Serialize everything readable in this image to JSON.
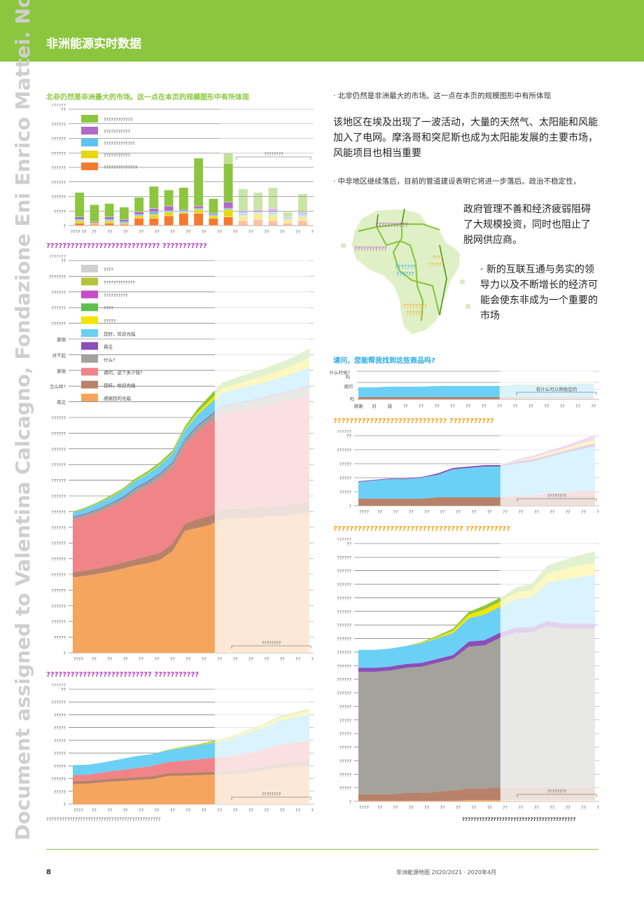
{
  "header": {
    "title": "非洲能源实时数据"
  },
  "watermark": {
    "text": "Document assigned to Valentina Calcagno, Fondazione Eni Enrico Mattei. Not fo"
  },
  "colors": {
    "green": "#8cc63f",
    "purple": "#a55fc4",
    "cyan": "#5bc5f2",
    "yellow": "#f2e500",
    "orange": "#f4a460",
    "pink": "#f08080",
    "brown": "#b8826a",
    "gray": "#a3a39b",
    "olive": "#b5c33a",
    "magenta": "#c84bc8",
    "lightgray": "#d0d0d0"
  },
  "charts": {
    "bar": {
      "title": "北非仍然是非洲最大的市场。这一点在本页的规模图形中有所体现",
      "y_ticks": [
        "??????\n??",
        "??????",
        "??????",
        "??????",
        "??????",
        "??????",
        "??????",
        "?????",
        "?"
      ],
      "legend": [
        {
          "label": "????????????",
          "color": "#8cc63f"
        },
        {
          "label": "???????????",
          "color": "#b06ac8"
        },
        {
          "label": "?????????????",
          "color": "#5bc5f2"
        },
        {
          "label": "???????????",
          "color": "#e8d80f"
        },
        {
          "label": "??????????????",
          "color": "#f47a30"
        }
      ],
      "forecast_label": "????????",
      "x_ticks": [
        "???? ??",
        "??",
        "??",
        "??",
        "??",
        "??",
        "??",
        "??",
        "??",
        "??",
        "??",
        "??",
        "??",
        "??",
        "??",
        "??"
      ]
    },
    "area_main": {
      "title": "???????????????????????????? ???????????",
      "y_ticks": [
        "???????\n??",
        "???????",
        "??????",
        "??????",
        "??????",
        "谢谢",
        "对不起",
        "谢谢",
        "怎么样?",
        "再见",
        "??????",
        "??????",
        "??????",
        "??????",
        "??????",
        "??????",
        "??????",
        "??????",
        "??????",
        "??????",
        "??????",
        "??????",
        "??????",
        "??????",
        "?????",
        "?"
      ],
      "legend": [
        {
          "label": "????",
          "color": "#d0d0d0"
        },
        {
          "label": "?????????????",
          "color": "#b5c33a"
        },
        {
          "label": "??????????",
          "color": "#c84bc8"
        },
        {
          "label": "????",
          "color": "#5fbf4f"
        },
        {
          "label": "?????",
          "color": "#f2e500"
        },
        {
          "label": "您好，欢迎光临",
          "color": "#6ccff5"
        },
        {
          "label": "再见",
          "color": "#8a4fb8"
        },
        {
          "label": "什么?",
          "color": "#a3a39b"
        },
        {
          "label": "请问，这个多少钱?",
          "color": "#f08488"
        },
        {
          "label": "您好，欢迎光临",
          "color": "#b8826a"
        },
        {
          "label": "感谢您的光临",
          "color": "#f6a55e"
        }
      ],
      "forecast_label": "????????",
      "x_ticks": [
        "????",
        "??",
        "??",
        "??",
        "??",
        "??",
        "??",
        "??",
        "??",
        "??",
        "??",
        "??",
        "??",
        "??",
        "??",
        "??"
      ]
    },
    "area_bl": {
      "title": "?????????????????????????? ???????????",
      "y_ticks": [
        "??????\n??",
        "??????",
        "?????",
        "?????",
        "?????",
        "?????",
        "?????",
        "??????",
        "?????",
        "?"
      ],
      "forecast_label": "????????",
      "x_ticks": [
        "????",
        "??",
        "??",
        "??",
        "??",
        "??",
        "??",
        "??",
        "??",
        "??",
        "??",
        "??",
        "??",
        "??",
        "??",
        "??"
      ],
      "footnote": "????????????????????????????????????????????"
    },
    "small": {
      "title": "请问，您能帮我找到这些商品吗?",
      "y_ticks": [
        "什么时候?\n吗",
        "请问",
        "吗"
      ],
      "forecast_label": "有什么可以帮助您的",
      "x_ticks": [
        "谢谢",
        "对",
        "错",
        "??",
        "??",
        "??",
        "??",
        "??",
        "??",
        "??",
        "??",
        "??",
        "??",
        "??",
        "??",
        "??"
      ]
    },
    "area_mr": {
      "title": "???????????????????????????? ???????????",
      "y_ticks": [
        "??????\n??",
        "??????",
        "?????",
        "?????",
        "?????",
        "?"
      ],
      "forecast_label": "????????",
      "x_ticks": [
        "????",
        "??",
        "??",
        "??",
        "??",
        "??",
        "??",
        "??",
        "??",
        "??",
        "??",
        "??",
        "??",
        "??",
        "??",
        "??"
      ]
    },
    "area_br": {
      "title": "???????????????????????????????? ???????????",
      "y_ticks": [
        "??????\n??",
        "??????",
        "??????",
        "??????",
        "??????",
        "??????",
        "??????",
        "??????",
        "??????",
        "??????",
        "??????",
        "??????",
        "?????",
        "?????",
        "?????",
        "?????",
        "?????",
        "?????",
        "?????",
        "?"
      ],
      "forecast_label": "????????",
      "x_ticks": [
        "????",
        "??",
        "??",
        "??",
        "??",
        "??",
        "??",
        "??",
        "??",
        "??",
        "??",
        "??",
        "??",
        "??",
        "??",
        "??"
      ],
      "footnote": "????????????????????????????????????????"
    }
  },
  "chart_data": [
    {
      "type": "bar",
      "title": "北非仍然是非洲最大的市场。这一点在本页的规模图形中有所体现",
      "categories": [
        "1",
        "2",
        "3",
        "4",
        "5",
        "6",
        "7",
        "8",
        "9",
        "10",
        "11",
        "12",
        "13",
        "14",
        "15",
        "16"
      ],
      "series": [
        {
          "name": "??????????????",
          "values": [
            2,
            1,
            2,
            1,
            6,
            6,
            8,
            10,
            10,
            6,
            7,
            4,
            5,
            4,
            2,
            4
          ]
        },
        {
          "name": "???????????",
          "values": [
            2,
            1,
            2,
            2,
            2,
            3,
            4,
            1,
            2,
            1,
            5,
            2,
            2,
            3,
            1,
            2
          ]
        },
        {
          "name": "?????????????",
          "values": [
            1,
            0,
            1,
            1,
            1,
            2,
            1,
            1,
            1,
            1,
            1,
            2,
            1,
            2,
            1,
            2
          ]
        },
        {
          "name": "???????????",
          "values": [
            2,
            1,
            2,
            1,
            2,
            3,
            3,
            1,
            3,
            2,
            6,
            4,
            5,
            5,
            3,
            3
          ]
        },
        {
          "name": "????????????",
          "values": [
            20,
            14,
            11,
            10,
            12,
            18,
            13,
            18,
            39,
            12,
            40,
            18,
            14,
            17,
            4,
            15
          ]
        }
      ],
      "ylim": [
        0,
        95
      ]
    },
    {
      "type": "area",
      "title": "???????????????????????????? ???????????",
      "x": [
        0,
        1,
        2,
        3,
        4,
        5,
        6,
        7,
        8,
        9,
        10,
        11,
        12,
        13,
        14,
        15,
        16,
        17,
        18,
        19
      ],
      "series": [
        {
          "name": "感谢您的光临",
          "values": [
            260,
            265,
            272,
            280,
            290,
            300,
            308,
            320,
            350,
            420,
            430,
            440,
            460,
            462,
            464,
            466,
            470,
            472,
            478,
            484
          ]
        },
        {
          "name": "您好，欢迎光临",
          "values": [
            18,
            18,
            19,
            20,
            20,
            22,
            24,
            24,
            26,
            24,
            30,
            32,
            33,
            34,
            35,
            35,
            36,
            36,
            36,
            37
          ]
        },
        {
          "name": "请问，这个多少钱?",
          "values": [
            180,
            185,
            192,
            200,
            210,
            228,
            240,
            255,
            260,
            270,
            300,
            320,
            330,
            335,
            340,
            345,
            350,
            358,
            362,
            368
          ]
        },
        {
          "name": "什么?",
          "values": [
            8,
            9,
            10,
            12,
            13,
            14,
            15,
            16,
            17,
            18,
            20,
            22,
            24,
            25,
            26,
            27,
            28,
            28,
            29,
            30
          ]
        },
        {
          "name": "再见",
          "values": [
            2,
            2,
            2,
            2,
            3,
            3,
            3,
            3,
            3,
            3,
            3,
            3,
            3,
            3,
            3,
            3,
            3,
            3,
            3,
            3
          ]
        },
        {
          "name": "您好，欢迎光临",
          "values": [
            14,
            16,
            18,
            20,
            22,
            24,
            26,
            28,
            30,
            32,
            36,
            40,
            44,
            46,
            48,
            50,
            52,
            54,
            58,
            62
          ]
        },
        {
          "name": "?????",
          "values": [
            1,
            1,
            1,
            2,
            2,
            2,
            3,
            3,
            3,
            4,
            8,
            12,
            16,
            18,
            20,
            22,
            24,
            26,
            28,
            32
          ]
        },
        {
          "name": "????",
          "values": [
            3,
            4,
            4,
            5,
            5,
            6,
            6,
            7,
            7,
            8,
            12,
            16,
            20,
            22,
            24,
            25,
            26,
            28,
            30,
            32
          ]
        }
      ]
    }
  ],
  "text": {
    "bullet1": "· 北非仍然是非洲最大的市场。这一点在本页的规模图形中有所体现",
    "para1": "该地区在埃及出现了一波活动，大量的天然气、太阳能和风能加入了电网。摩洛哥和突尼斯也成为太阳能发展的主要市场，风能项目也相当重要",
    "bullet2": "· 中非地区继续落后，目前的管道建设表明它将进一步落后。政治不稳定性，",
    "para2": "政府管理不善和经济疲弱阻碍了大规模投资，同时也阻止了脱网供应商。",
    "para3": "· 新的互联互通与务实的领导力以及不断增长的经济可能会使东非成为一个重要的市场"
  },
  "map": {
    "labels": [
      {
        "text": "???????????",
        "color": "#b43ec9"
      },
      {
        "text": "???????????",
        "color": "#b43ec9"
      },
      {
        "text": "????\n??????",
        "color": "#f7a21b"
      },
      {
        "text": "???????\n??????",
        "color": "#29abe2"
      },
      {
        "text": "????????\n??????",
        "color": "#f7a21b"
      }
    ]
  },
  "footer": {
    "page": "8",
    "right": "非洲能源地图 2020/2021 · 2020年4月"
  }
}
